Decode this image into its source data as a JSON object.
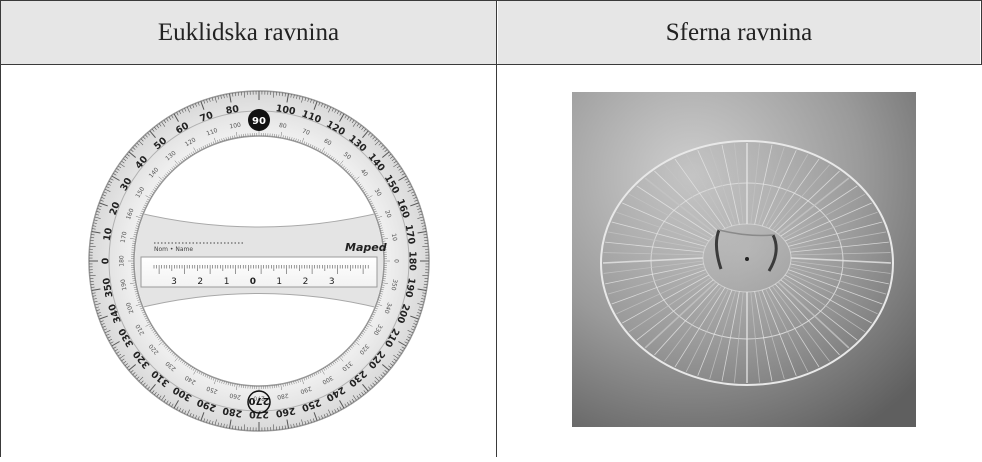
{
  "table": {
    "headers": [
      "Euklidska ravnina",
      "Sferna ravnina"
    ]
  },
  "protractor": {
    "brand": "Maped",
    "name_label": "Nom • Name",
    "outer_labels": [
      "0",
      "10",
      "20",
      "30",
      "40",
      "50",
      "60",
      "70",
      "80",
      "90",
      "100",
      "110",
      "120",
      "130",
      "140",
      "150",
      "160",
      "170",
      "180",
      "190",
      "200",
      "210",
      "220",
      "230",
      "240",
      "250",
      "260",
      "270",
      "280",
      "290",
      "300",
      "310",
      "320",
      "330",
      "340",
      "350"
    ],
    "ruler_labels": [
      "3",
      "2",
      "1",
      "0",
      "1",
      "2",
      "3"
    ]
  },
  "photo": {
    "subject": "spherical protractor"
  },
  "colors": {
    "header_bg": "#e6e6e6",
    "border": "#3a3a3a"
  }
}
